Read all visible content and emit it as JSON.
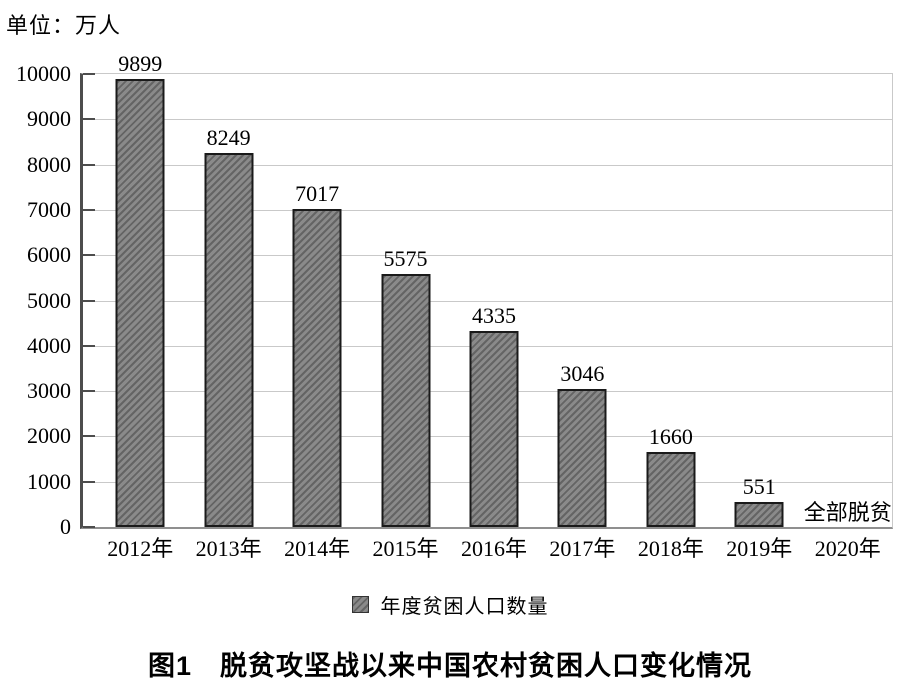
{
  "figure": {
    "unit_label": "单位：万人",
    "legend_label": "年度贫困人口数量",
    "caption": "图1　脱贫攻坚战以来中国农村贫困人口变化情况"
  },
  "chart_data": {
    "type": "bar",
    "title": "图1 脱贫攻坚战以来中国农村贫困人口变化情况",
    "unit": "万人",
    "categories": [
      "2012年",
      "2013年",
      "2014年",
      "2015年",
      "2016年",
      "2017年",
      "2018年",
      "2019年",
      "2020年"
    ],
    "values": [
      9899,
      8249,
      7017,
      5575,
      4335,
      3046,
      1660,
      551,
      0
    ],
    "bar_labels": [
      "9899",
      "8249",
      "7017",
      "5575",
      "4335",
      "3046",
      "1660",
      "551",
      ""
    ],
    "annotations": [
      {
        "category": "2020年",
        "text": "全部脱贫"
      }
    ],
    "legend": [
      "年度贫困人口数量"
    ],
    "legend_position": "bottom",
    "xlabel": "",
    "ylabel": "万人",
    "ylim": [
      0,
      10000
    ],
    "yticks": [
      0,
      1000,
      2000,
      3000,
      4000,
      5000,
      6000,
      7000,
      8000,
      9000,
      10000
    ],
    "grid": "horizontal",
    "colors": {
      "bar_fill": "#8a8a8a",
      "bar_hatch": "#646464",
      "bar_border": "#1a1a1a",
      "gridline": "#c9c9c9",
      "axis": "#4d4d4d",
      "baseline": "#8f8f8f",
      "text": "#000000"
    }
  }
}
